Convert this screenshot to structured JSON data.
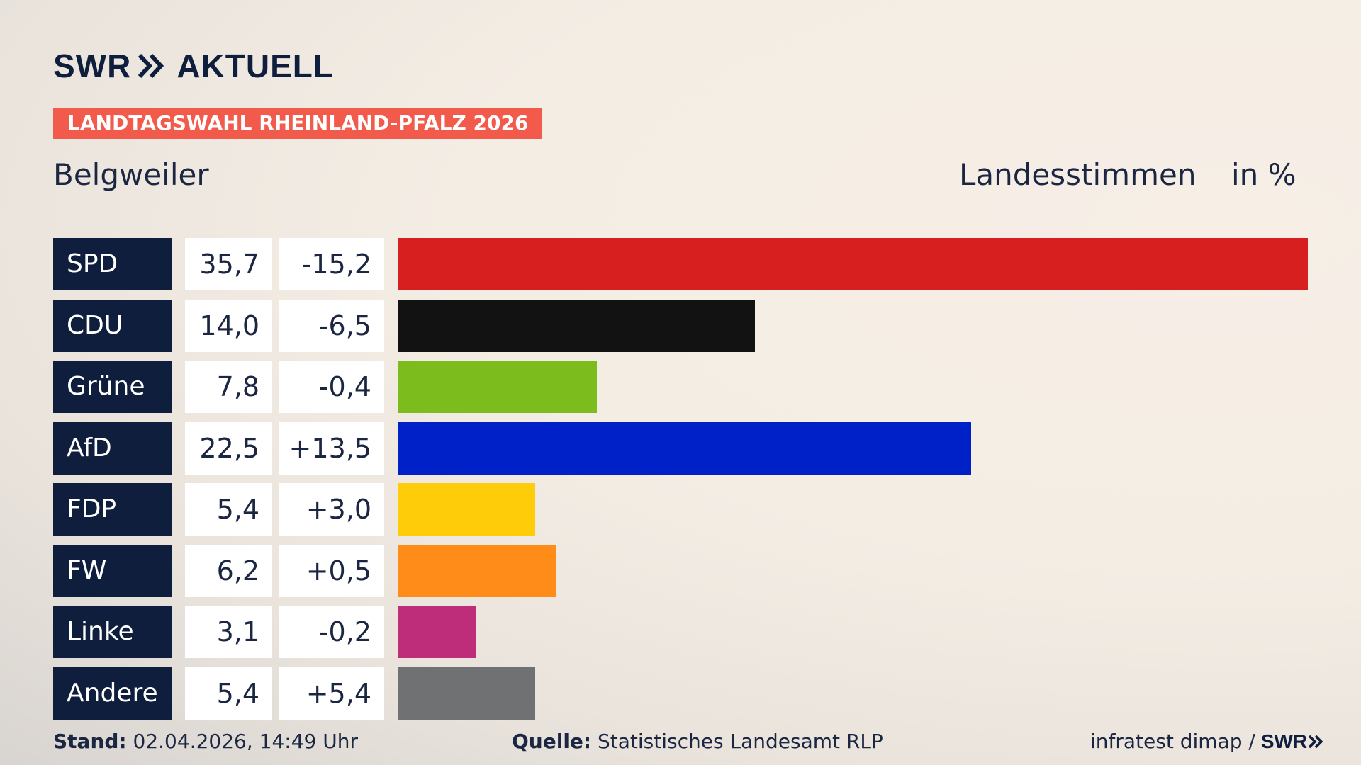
{
  "brand": {
    "logo_primary": "SWR",
    "logo_secondary": "AKTUELL",
    "chevron_icon": "double-chevron-right-icon"
  },
  "banner": "LANDTAGSWAHL RHEINLAND-PFALZ 2026",
  "place": "Belgweiler",
  "metric": "Landesstimmen",
  "unit": "in %",
  "chart_data": {
    "type": "bar",
    "orientation": "horizontal",
    "categories": [
      "SPD",
      "CDU",
      "Grüne",
      "AfD",
      "FDP",
      "FW",
      "Linke",
      "Andere"
    ],
    "series": [
      {
        "values": [
          35.7,
          14.0,
          7.8,
          22.5,
          5.4,
          6.2,
          3.1,
          5.4
        ],
        "labels": [
          "35,7",
          "14,0",
          "7,8",
          "22,5",
          "5,4",
          "6,2",
          "3,1",
          "5,4"
        ],
        "diff_labels": [
          "-15,2",
          "-6,5",
          "-0,4",
          "+13,5",
          "+3,0",
          "+0,5",
          "-0,2",
          "+5,4"
        ],
        "colors": [
          "#d81f1f",
          "#121212",
          "#7cbc1c",
          "#0021c8",
          "#ffcc0a",
          "#ff8c18",
          "#bd2d7a",
          "#707173"
        ]
      }
    ],
    "xlim": [
      0,
      35.7
    ],
    "grid": false,
    "legend": "none"
  },
  "footer": {
    "stand_label": "Stand:",
    "stand_value": "02.04.2026, 14:49 Uhr",
    "source_label": "Quelle:",
    "source_value": "Statistisches Landesamt RLP",
    "credit": "infratest dimap /",
    "credit_logo": "SWR"
  }
}
